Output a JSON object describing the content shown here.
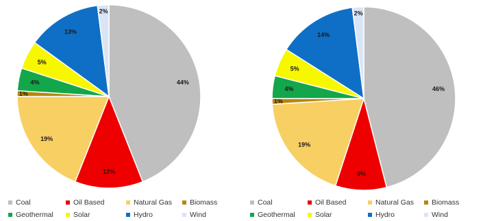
{
  "chart_data": [
    {
      "type": "pie",
      "title": "",
      "legend_placement": "bottom",
      "categories": [
        "Coal",
        "Oil Based",
        "Natural Gas",
        "Biomass",
        "Geothermal",
        "Solar",
        "Hydro",
        "Wind"
      ],
      "values": [
        44,
        12,
        19,
        1,
        4,
        5,
        13,
        2
      ],
      "labels": [
        "44%",
        "12%",
        "19%",
        "1%",
        "4%",
        "5%",
        "13%",
        "2%"
      ],
      "colors": [
        "#bfbfbf",
        "#ee0000",
        "#f8cf63",
        "#b8860b",
        "#14a64a",
        "#f7f700",
        "#0f6fc6",
        "#d9e5f6"
      ]
    },
    {
      "type": "pie",
      "title": "",
      "legend_placement": "bottom",
      "categories": [
        "Coal",
        "Oil Based",
        "Natural Gas",
        "Biomass",
        "Geothermal",
        "Solar",
        "Hydro",
        "Wind"
      ],
      "values": [
        46,
        9,
        19,
        1,
        4,
        5,
        14,
        2
      ],
      "labels": [
        "46%",
        "9%",
        "19%",
        "1%",
        "4%",
        "5%",
        "14%",
        "2%"
      ],
      "colors": [
        "#bfbfbf",
        "#ee0000",
        "#f8cf63",
        "#b8860b",
        "#14a64a",
        "#f7f700",
        "#0f6fc6",
        "#d9e5f6"
      ]
    }
  ]
}
